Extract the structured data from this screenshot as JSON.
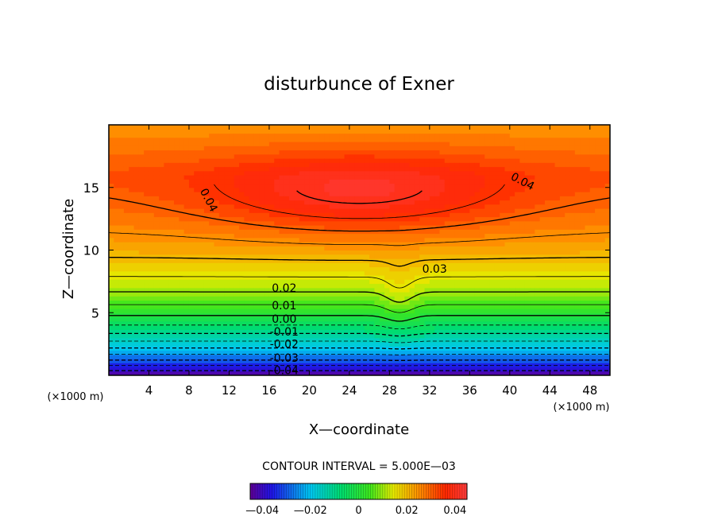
{
  "chart_data": {
    "type": "contour",
    "title": "disturbunce of Exner",
    "xlabel": "X—coordinate",
    "ylabel": "Z—coordinate",
    "x_unit": "(×1000 m)",
    "y_unit": "(×1000 m)",
    "xlim": [
      0,
      50
    ],
    "ylim": [
      0,
      20
    ],
    "x_ticks": [
      4,
      8,
      12,
      16,
      20,
      24,
      28,
      32,
      36,
      40,
      44,
      48
    ],
    "y_ticks": [
      5,
      10,
      15
    ],
    "contour_interval_label": "CONTOUR INTERVAL = 5.000E—03",
    "contour_interval": 0.005,
    "value_range": [
      -0.045,
      0.045
    ],
    "contour_labels": [
      {
        "text": "0.04",
        "x": 41.3,
        "z": 15.5,
        "rotate": 28
      },
      {
        "text": "0.04",
        "x": 10.0,
        "z": 14.0,
        "rotate": 62
      },
      {
        "text": "0.03",
        "x": 32.5,
        "z": 8.5,
        "rotate": 0
      },
      {
        "text": "0.02",
        "x": 17.5,
        "z": 7.0,
        "rotate": 0
      },
      {
        "text": "0.01",
        "x": 17.5,
        "z": 5.6,
        "rotate": 0
      },
      {
        "text": "0.00",
        "x": 17.5,
        "z": 4.5,
        "rotate": 0
      },
      {
        "text": "-0.01",
        "x": 17.5,
        "z": 3.5,
        "rotate": 0
      },
      {
        "text": "-0.02",
        "x": 17.5,
        "z": 2.5,
        "rotate": 0
      },
      {
        "text": "-0.03",
        "x": 17.5,
        "z": 1.4,
        "rotate": 0
      },
      {
        "text": "-0.04",
        "x": 17.5,
        "z": 0.4,
        "rotate": 0
      }
    ],
    "colorbar": {
      "ticks": [
        {
          "label": "—0.04",
          "value": -0.04
        },
        {
          "label": "—0.02",
          "value": -0.02
        },
        {
          "label": "0",
          "value": 0
        },
        {
          "label": "0.02",
          "value": 0.02
        },
        {
          "label": "0.04",
          "value": 0.04
        }
      ]
    }
  }
}
